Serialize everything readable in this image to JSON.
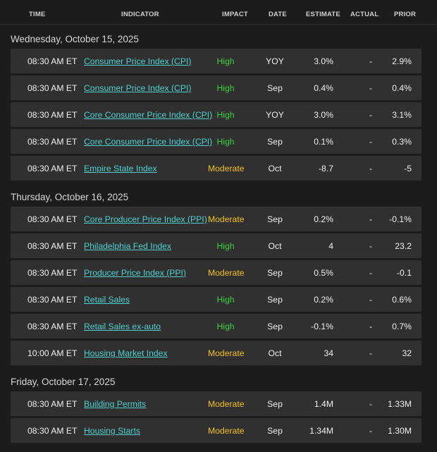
{
  "columns": {
    "time": "TIME",
    "indicator": "INDICATOR",
    "impact": "IMPACT",
    "date": "DATE",
    "estimate": "ESTIMATE",
    "actual": "ACTUAL",
    "prior": "PRIOR"
  },
  "colors": {
    "high": "#3cd03c",
    "moderate": "#f2c01f",
    "link": "#4fd1cf"
  },
  "days": [
    {
      "title": "Wednesday, October 15, 2025",
      "rows": [
        {
          "time": "08:30 AM ET",
          "indicator": "Consumer Price Index (CPI)",
          "impact": "High",
          "date": "YOY",
          "estimate": "3.0%",
          "actual": "-",
          "prior": "2.9%"
        },
        {
          "time": "08:30 AM ET",
          "indicator": "Consumer Price Index (CPI)",
          "impact": "High",
          "date": "Sep",
          "estimate": "0.4%",
          "actual": "-",
          "prior": "0.4%"
        },
        {
          "time": "08:30 AM ET",
          "indicator": "Core Consumer Price Index (CPI)",
          "impact": "High",
          "date": "YOY",
          "estimate": "3.0%",
          "actual": "-",
          "prior": "3.1%"
        },
        {
          "time": "08:30 AM ET",
          "indicator": "Core Consumer Price Index (CPI)",
          "impact": "High",
          "date": "Sep",
          "estimate": "0.1%",
          "actual": "-",
          "prior": "0.3%"
        },
        {
          "time": "08:30 AM ET",
          "indicator": "Empire State Index",
          "impact": "Moderate",
          "date": "Oct",
          "estimate": "-8.7",
          "actual": "-",
          "prior": "-5"
        }
      ]
    },
    {
      "title": "Thursday, October 16, 2025",
      "rows": [
        {
          "time": "08:30 AM ET",
          "indicator": "Core Producer Price Index (PPI)",
          "impact": "Moderate",
          "date": "Sep",
          "estimate": "0.2%",
          "actual": "-",
          "prior": "-0.1%"
        },
        {
          "time": "08:30 AM ET",
          "indicator": "Philadelphia Fed Index",
          "impact": "High",
          "date": "Oct",
          "estimate": "4",
          "actual": "-",
          "prior": "23.2"
        },
        {
          "time": "08:30 AM ET",
          "indicator": "Producer Price Index (PPI)",
          "impact": "Moderate",
          "date": "Sep",
          "estimate": "0.5%",
          "actual": "-",
          "prior": "-0.1"
        },
        {
          "time": "08:30 AM ET",
          "indicator": "Retail Sales",
          "impact": "High",
          "date": "Sep",
          "estimate": "0.2%",
          "actual": "-",
          "prior": "0.6%"
        },
        {
          "time": "08:30 AM ET",
          "indicator": "Retail Sales ex-auto",
          "impact": "High",
          "date": "Sep",
          "estimate": "-0.1%",
          "actual": "-",
          "prior": "0.7%"
        },
        {
          "time": "10:00 AM ET",
          "indicator": "Housing Market Index",
          "impact": "Moderate",
          "date": "Oct",
          "estimate": "34",
          "actual": "-",
          "prior": "32"
        }
      ]
    },
    {
      "title": "Friday, October 17, 2025",
      "rows": [
        {
          "time": "08:30 AM ET",
          "indicator": "Building Permits",
          "impact": "Moderate",
          "date": "Sep",
          "estimate": "1.4M",
          "actual": "-",
          "prior": "1.33M"
        },
        {
          "time": "08:30 AM ET",
          "indicator": "Housing Starts",
          "impact": "Moderate",
          "date": "Sep",
          "estimate": "1.34M",
          "actual": "-",
          "prior": "1.30M"
        }
      ]
    }
  ]
}
